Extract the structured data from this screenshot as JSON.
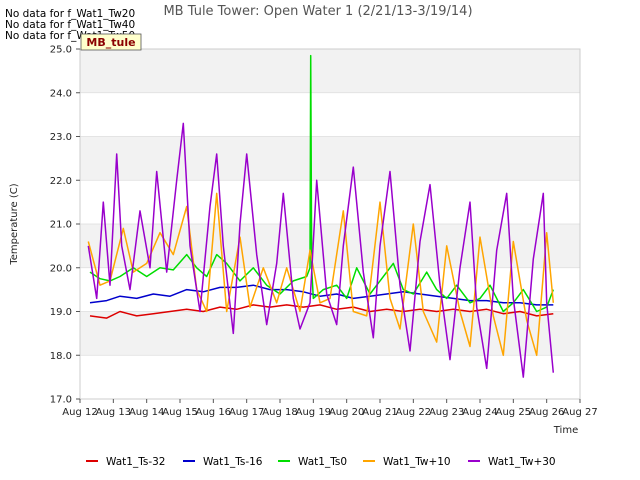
{
  "no_data_messages": [
    "No data for f_Wat1_Tw20",
    "No data for f_Wat1_Tw40",
    "No data for f_Wat1_Tw50"
  ],
  "tooltip_label": "MB_tule",
  "chart_data": {
    "type": "line",
    "title": "MB Tule Tower: Open Water 1 (2/21/13-3/19/14)",
    "xlabel": "Time",
    "ylabel": "Temperature (C)",
    "ylim": [
      17.0,
      25.0
    ],
    "yticks": [
      "17.0",
      "18.0",
      "19.0",
      "20.0",
      "21.0",
      "22.0",
      "23.0",
      "24.0",
      "25.0"
    ],
    "xlim": [
      12,
      27
    ],
    "xticks": [
      "Aug 12",
      "Aug 13",
      "Aug 14",
      "Aug 15",
      "Aug 16",
      "Aug 17",
      "Aug 18",
      "Aug 19",
      "Aug 20",
      "Aug 21",
      "Aug 22",
      "Aug 23",
      "Aug 24",
      "Aug 25",
      "Aug 26",
      "Aug 27"
    ],
    "grid": true,
    "legend_position": "bottom",
    "series": [
      {
        "name": "Wat1_Ts-32",
        "color": "#dd0000",
        "x": [
          12.3,
          12.8,
          13.2,
          13.7,
          14.2,
          14.7,
          15.2,
          15.7,
          16.2,
          16.7,
          17.2,
          17.7,
          18.2,
          18.7,
          19.2,
          19.7,
          20.2,
          20.7,
          21.2,
          21.7,
          22.2,
          22.7,
          23.2,
          23.7,
          24.2,
          24.7,
          25.2,
          25.7,
          26.2
        ],
        "y": [
          18.9,
          18.85,
          19.0,
          18.9,
          18.95,
          19.0,
          19.05,
          19.0,
          19.1,
          19.05,
          19.15,
          19.1,
          19.15,
          19.1,
          19.15,
          19.05,
          19.1,
          19.0,
          19.05,
          19.0,
          19.05,
          19.0,
          19.05,
          19.0,
          19.05,
          18.95,
          19.0,
          18.9,
          18.95
        ]
      },
      {
        "name": "Wat1_Ts-16",
        "color": "#0000cc",
        "x": [
          12.3,
          12.8,
          13.2,
          13.7,
          14.2,
          14.7,
          15.2,
          15.7,
          16.2,
          16.7,
          17.2,
          17.7,
          18.2,
          18.7,
          19.2,
          19.7,
          20.2,
          20.7,
          21.2,
          21.7,
          22.2,
          22.7,
          23.2,
          23.7,
          24.2,
          24.7,
          25.2,
          25.7,
          26.2
        ],
        "y": [
          19.2,
          19.25,
          19.35,
          19.3,
          19.4,
          19.35,
          19.5,
          19.45,
          19.55,
          19.55,
          19.6,
          19.5,
          19.5,
          19.45,
          19.35,
          19.4,
          19.3,
          19.35,
          19.4,
          19.45,
          19.4,
          19.35,
          19.3,
          19.25,
          19.25,
          19.2,
          19.2,
          19.15,
          19.15
        ]
      },
      {
        "name": "Wat1_Ts0",
        "color": "#00dd00",
        "x": [
          12.3,
          12.6,
          12.9,
          13.2,
          13.6,
          14.0,
          14.4,
          14.8,
          15.2,
          15.5,
          15.8,
          16.1,
          16.4,
          16.8,
          17.2,
          17.6,
          18.0,
          18.4,
          18.8,
          18.9,
          18.92,
          18.95,
          19.0,
          19.3,
          19.7,
          20.0,
          20.3,
          20.7,
          21.0,
          21.4,
          21.7,
          22.0,
          22.4,
          22.7,
          23.0,
          23.3,
          23.7,
          24.0,
          24.3,
          24.7,
          25.0,
          25.3,
          25.7,
          26.0,
          26.2
        ],
        "y": [
          19.9,
          19.75,
          19.7,
          19.8,
          20.0,
          19.8,
          20.0,
          19.95,
          20.3,
          20.0,
          19.8,
          20.3,
          20.1,
          19.7,
          20.0,
          19.6,
          19.4,
          19.7,
          19.8,
          20.0,
          24.85,
          20.0,
          19.3,
          19.5,
          19.6,
          19.3,
          20.0,
          19.4,
          19.7,
          20.1,
          19.5,
          19.4,
          19.9,
          19.5,
          19.3,
          19.6,
          19.2,
          19.3,
          19.6,
          19.0,
          19.2,
          19.5,
          19.0,
          19.1,
          19.5
        ]
      },
      {
        "name": "Wat1_Tw+10",
        "color": "#ffa500",
        "x": [
          12.25,
          12.6,
          12.9,
          13.3,
          13.6,
          14.0,
          14.4,
          14.8,
          15.2,
          15.5,
          15.8,
          16.1,
          16.4,
          16.8,
          17.1,
          17.5,
          17.9,
          18.2,
          18.6,
          18.9,
          19.2,
          19.5,
          19.9,
          20.2,
          20.6,
          21.0,
          21.3,
          21.6,
          22.0,
          22.3,
          22.7,
          23.0,
          23.4,
          23.7,
          24.0,
          24.4,
          24.7,
          25.0,
          25.4,
          25.7,
          26.0,
          26.2
        ],
        "y": [
          20.6,
          19.6,
          19.7,
          20.9,
          19.9,
          20.1,
          20.8,
          20.3,
          21.4,
          19.5,
          19.0,
          21.7,
          19.0,
          20.7,
          19.1,
          20.0,
          19.2,
          20.0,
          19.0,
          20.4,
          19.2,
          19.3,
          21.3,
          19.0,
          18.9,
          21.5,
          19.3,
          18.6,
          21.0,
          19.0,
          18.3,
          20.5,
          19.0,
          18.2,
          20.7,
          18.9,
          18.0,
          20.6,
          18.8,
          18.0,
          20.8,
          19.2
        ]
      },
      {
        "name": "Wat1_Tw+30",
        "color": "#9900cc",
        "x": [
          12.25,
          12.5,
          12.7,
          12.9,
          13.1,
          13.25,
          13.5,
          13.8,
          14.1,
          14.3,
          14.6,
          14.9,
          15.1,
          15.3,
          15.6,
          15.9,
          16.1,
          16.3,
          16.6,
          16.8,
          17.0,
          17.3,
          17.6,
          17.9,
          18.1,
          18.4,
          18.6,
          18.9,
          19.1,
          19.4,
          19.7,
          19.9,
          20.2,
          20.5,
          20.8,
          21.0,
          21.3,
          21.6,
          21.9,
          22.2,
          22.5,
          22.8,
          23.1,
          23.4,
          23.7,
          23.9,
          24.2,
          24.5,
          24.8,
          25.0,
          25.3,
          25.6,
          25.9,
          26.0,
          26.2
        ],
        "y": [
          20.5,
          19.3,
          21.5,
          19.6,
          22.6,
          20.5,
          19.5,
          21.3,
          20.0,
          22.2,
          19.9,
          22.0,
          23.3,
          20.5,
          19.0,
          21.4,
          22.6,
          20.5,
          18.5,
          21.0,
          22.6,
          20.3,
          18.7,
          20.1,
          21.7,
          19.3,
          18.6,
          19.2,
          22.0,
          19.4,
          18.7,
          20.5,
          22.3,
          19.9,
          18.4,
          20.5,
          22.2,
          19.6,
          18.1,
          20.6,
          21.9,
          19.6,
          17.9,
          20.0,
          21.5,
          19.1,
          17.7,
          20.4,
          21.7,
          19.3,
          17.5,
          20.2,
          21.7,
          19.2,
          17.6
        ]
      }
    ]
  }
}
